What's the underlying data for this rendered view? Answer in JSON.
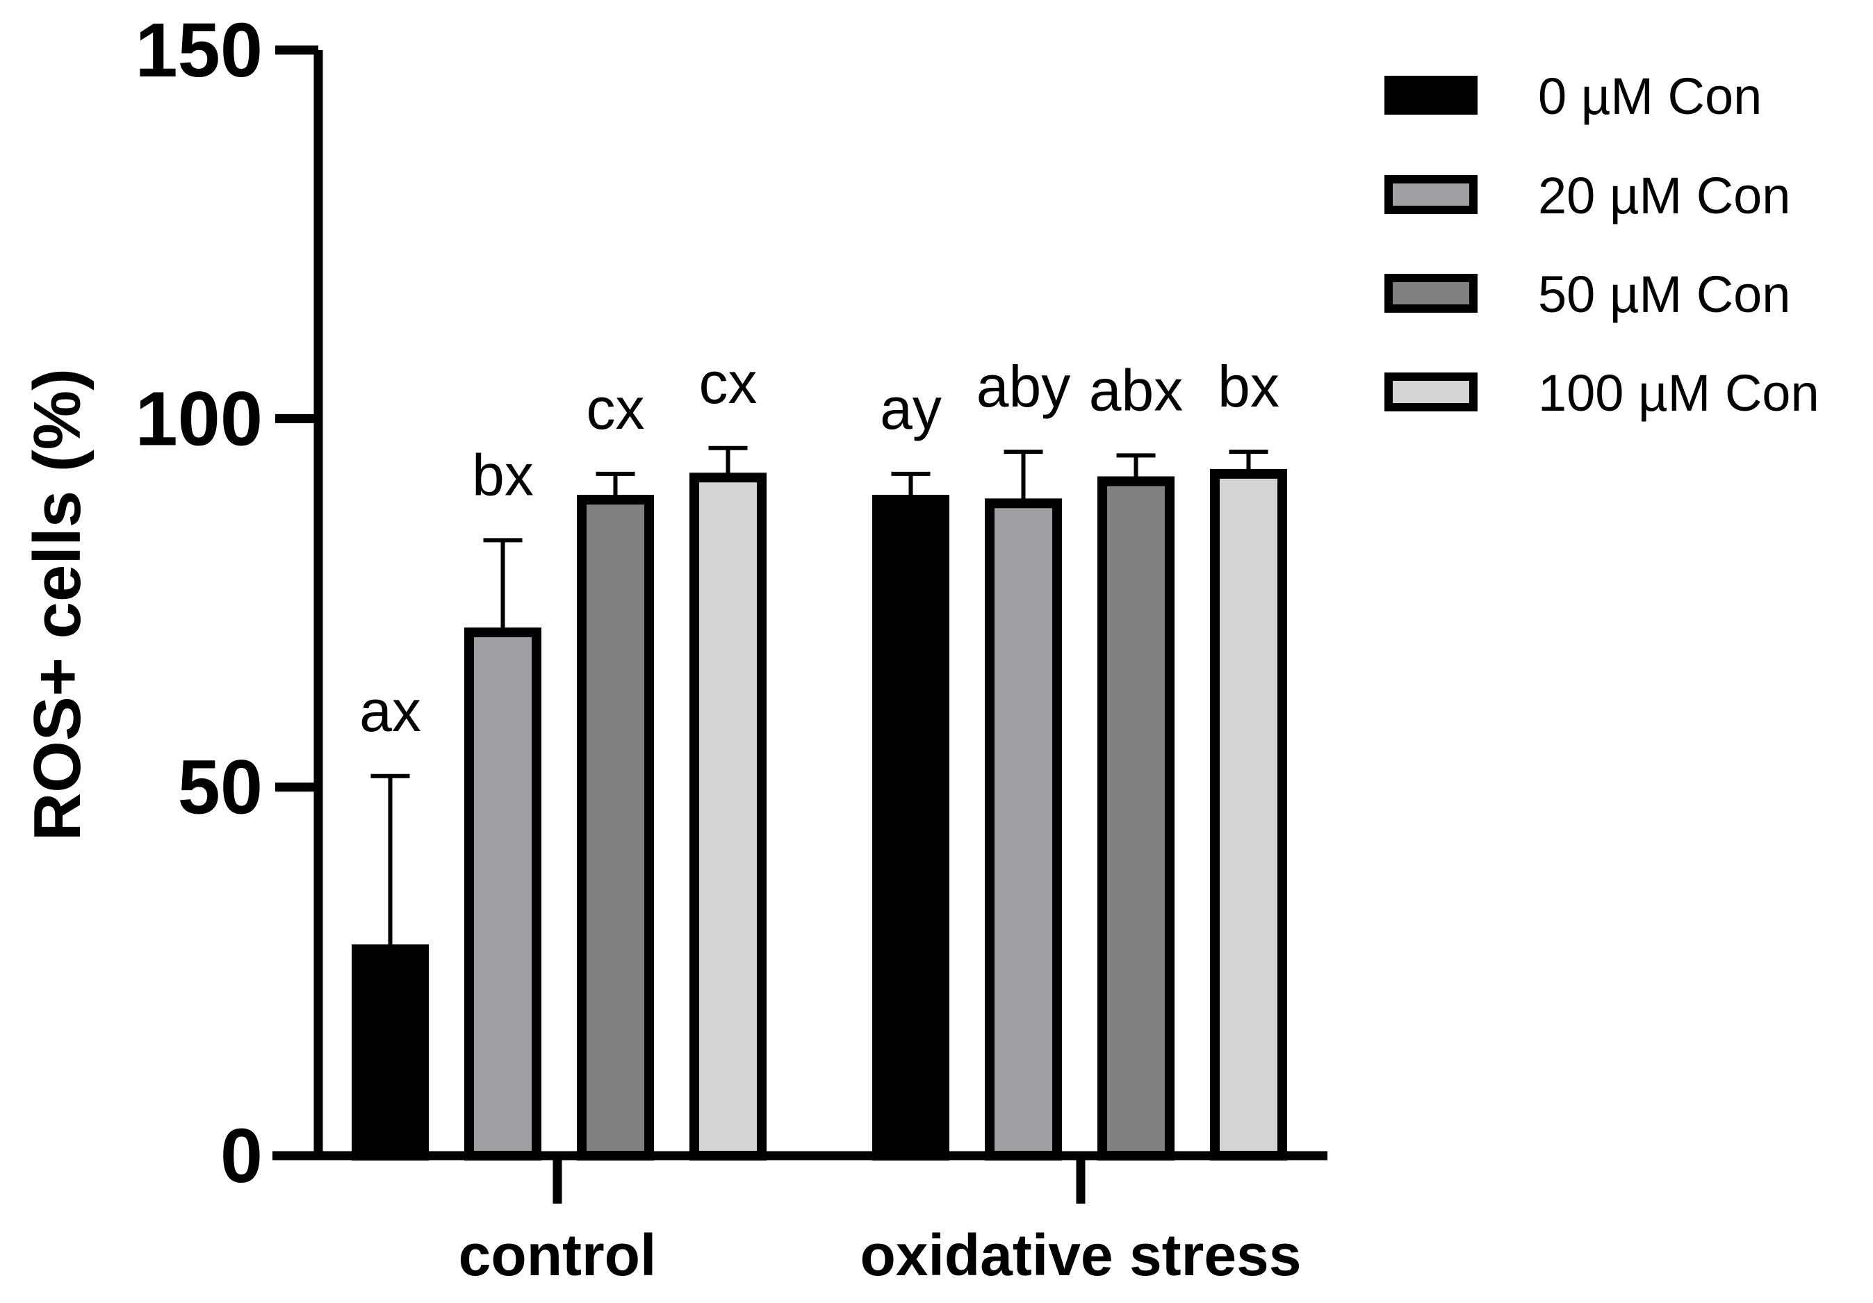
{
  "chart_data": {
    "type": "bar",
    "title": "",
    "xlabel": "",
    "ylabel": "ROS+ cells (%)",
    "ylim": [
      0,
      150
    ],
    "yticks": [
      0,
      50,
      100,
      150
    ],
    "categories": [
      "control",
      "oxidative stress"
    ],
    "series": [
      {
        "name": "0 µM Con",
        "color": "#000000",
        "values": [
          28,
          89
        ],
        "errors": [
          23.5,
          3.5
        ],
        "labels": [
          "ax",
          "ay"
        ]
      },
      {
        "name": "20 µM Con",
        "color": "#a0a0a4",
        "values": [
          71,
          88.5
        ],
        "errors": [
          12.5,
          7
        ],
        "labels": [
          "bx",
          "aby"
        ]
      },
      {
        "name": "50 µM Con",
        "color": "#808080",
        "values": [
          89,
          91.5
        ],
        "errors": [
          3.5,
          3.5
        ],
        "labels": [
          "cx",
          "abx"
        ]
      },
      {
        "name": "100 µM Con",
        "color": "#d4d4d4",
        "values": [
          92,
          92.5
        ],
        "errors": [
          4,
          3
        ],
        "labels": [
          "cx",
          "bx"
        ]
      }
    ]
  }
}
